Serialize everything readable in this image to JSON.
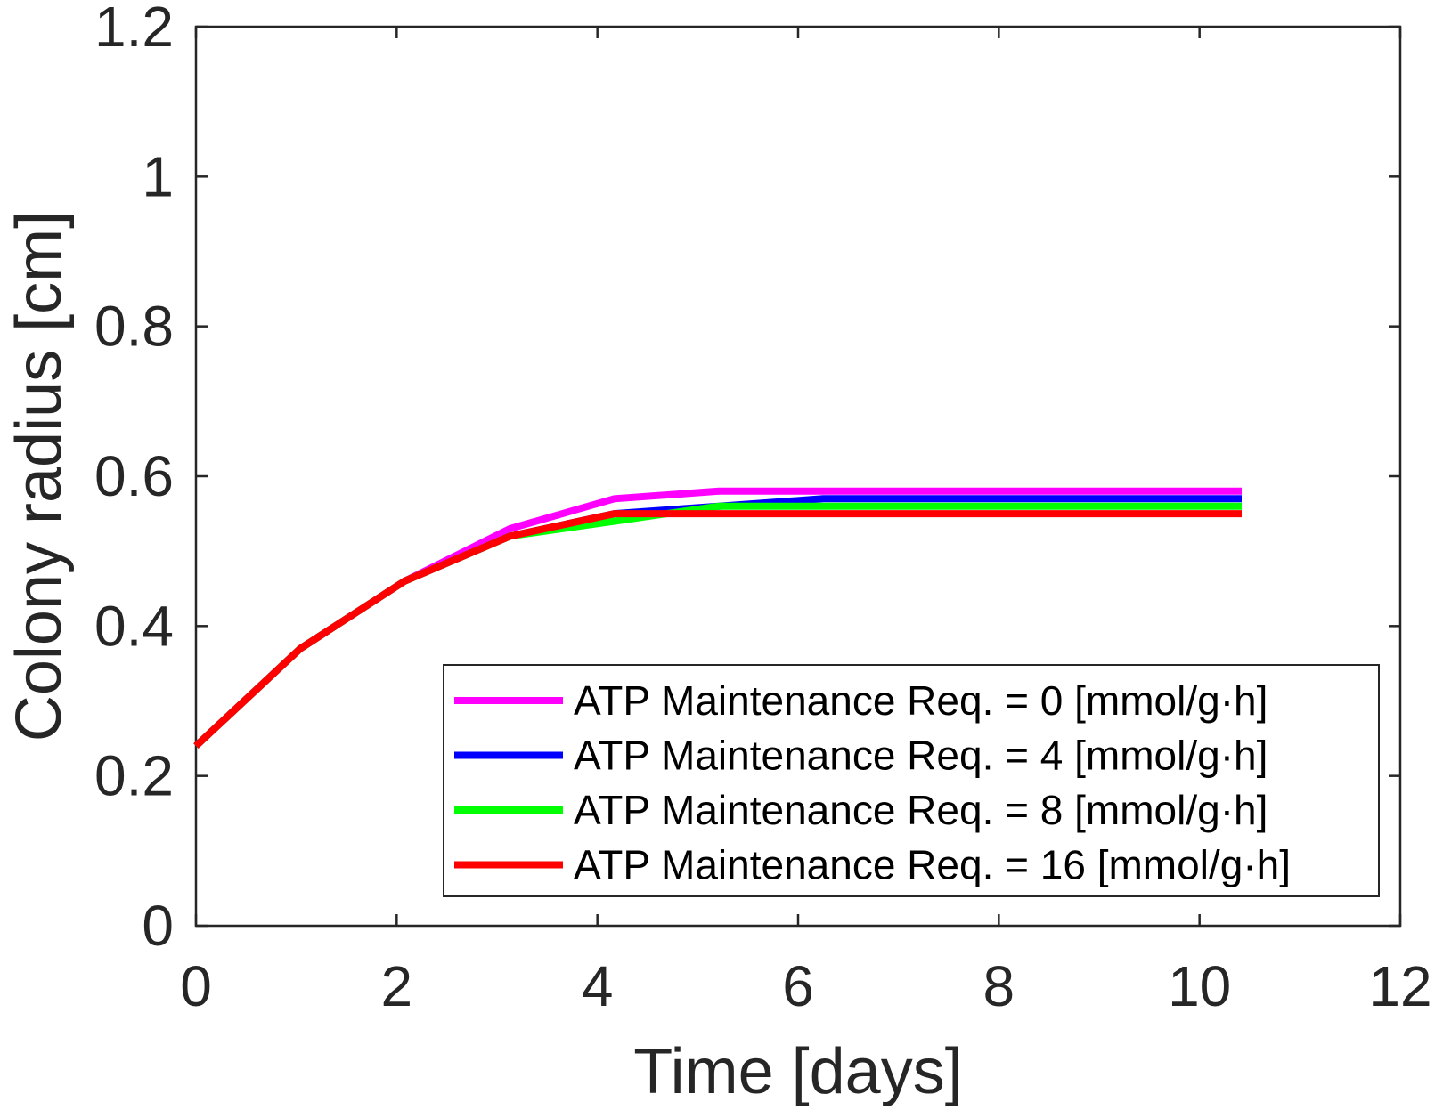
{
  "chart_data": {
    "type": "line",
    "title": "",
    "xlabel": "Time [days]",
    "ylabel": "Colony radius [cm]",
    "xlim": [
      0,
      12
    ],
    "ylim": [
      0,
      1.2
    ],
    "xticks": [
      "0",
      "2",
      "4",
      "6",
      "8",
      "10",
      "12"
    ],
    "yticks": [
      "0",
      "0.2",
      "0.4",
      "0.6",
      "0.8",
      "1",
      "1.2"
    ],
    "grid": false,
    "legend_position": "bottom-right",
    "series": [
      {
        "name": "ATP Maintenance Req. = 0 [mmol/g·h]",
        "color": "#ff00ff",
        "x": [
          0,
          1.04,
          2.08,
          3.13,
          4.17,
          5.21,
          6.25,
          7.29,
          8.33,
          9.38,
          10.42
        ],
        "y": [
          0.24,
          0.37,
          0.46,
          0.53,
          0.57,
          0.58,
          0.58,
          0.58,
          0.58,
          0.58,
          0.58
        ]
      },
      {
        "name": "ATP Maintenance Req. = 4 [mmol/g·h]",
        "color": "#0000ff",
        "x": [
          0,
          1.04,
          2.08,
          3.13,
          4.17,
          5.21,
          6.25,
          7.29,
          8.33,
          9.38,
          10.42
        ],
        "y": [
          0.24,
          0.37,
          0.46,
          0.52,
          0.55,
          0.56,
          0.57,
          0.57,
          0.57,
          0.57,
          0.57
        ]
      },
      {
        "name": "ATP Maintenance Req. = 8 [mmol/g·h]",
        "color": "#00ff00",
        "x": [
          0,
          1.04,
          2.08,
          3.13,
          4.17,
          5.21,
          6.25,
          7.29,
          8.33,
          9.38,
          10.42
        ],
        "y": [
          0.24,
          0.37,
          0.46,
          0.52,
          0.54,
          0.56,
          0.56,
          0.56,
          0.56,
          0.56,
          0.56
        ]
      },
      {
        "name": "ATP Maintenance Req. = 16 [mmol/g·h]",
        "color": "#ff0000",
        "x": [
          0,
          1.04,
          2.08,
          3.13,
          4.17,
          5.21,
          6.25,
          7.29,
          8.33,
          9.38,
          10.42
        ],
        "y": [
          0.24,
          0.37,
          0.46,
          0.52,
          0.55,
          0.55,
          0.55,
          0.55,
          0.55,
          0.55,
          0.55
        ]
      }
    ]
  }
}
